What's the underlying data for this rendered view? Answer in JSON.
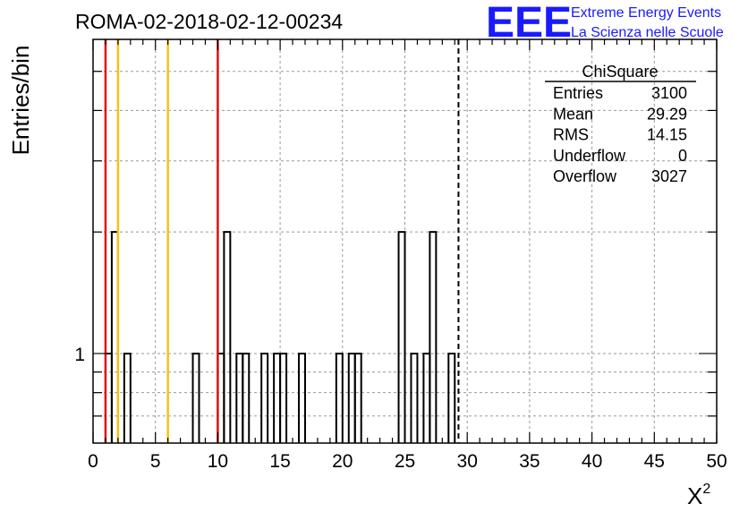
{
  "chart_data": {
    "type": "histogram",
    "title": "ROMA-02-2018-02-12-00234",
    "xlabel": "X",
    "xlabel_sup": "2",
    "ylabel": "Entries/bin",
    "xlim": [
      0,
      50
    ],
    "ylog": true,
    "ylim": [
      0.6,
      6
    ],
    "bin_width": 0.5,
    "x_ticks": [
      "0",
      "5",
      "10",
      "15",
      "20",
      "25",
      "30",
      "35",
      "40",
      "45",
      "50"
    ],
    "y_ticks": [
      "1"
    ],
    "grid": true,
    "counts": [
      0,
      0,
      1,
      2,
      0,
      1,
      0,
      0,
      0,
      0,
      0,
      0,
      0,
      0,
      0,
      0,
      1,
      0,
      0,
      0,
      1,
      2,
      0,
      1,
      1,
      0,
      0,
      1,
      0,
      1,
      1,
      0,
      0,
      1,
      0,
      0,
      0,
      0,
      0,
      1,
      0,
      1,
      1,
      0,
      0,
      0,
      0,
      0,
      0,
      2,
      0,
      1,
      0,
      1,
      2,
      0,
      0,
      1,
      0,
      0,
      0,
      0,
      0,
      0,
      0,
      0,
      0,
      0,
      0,
      0,
      0,
      0,
      0,
      0,
      0,
      0,
      0,
      0,
      0,
      0,
      0,
      0,
      0,
      0,
      0,
      0,
      0,
      0,
      0,
      0,
      0,
      0,
      0,
      0,
      0,
      0,
      0,
      0,
      0,
      0
    ],
    "vlines": [
      {
        "x": 1.0,
        "color": "#e01010"
      },
      {
        "x": 2.0,
        "color": "#f2c21a"
      },
      {
        "x": 6.0,
        "color": "#f2c21a"
      },
      {
        "x": 10.0,
        "color": "#e01010"
      }
    ],
    "dashed_line_x": 29.3,
    "stats": {
      "name": "ChiSquare",
      "rows": [
        {
          "label": "Entries",
          "value": "3100"
        },
        {
          "label": "Mean",
          "value": "29.29"
        },
        {
          "label": "RMS",
          "value": "14.15"
        },
        {
          "label": "Underflow",
          "value": "0"
        },
        {
          "label": "Overflow",
          "value": "3027"
        }
      ]
    }
  },
  "logo": {
    "mark": "EEE",
    "line1": "Extreme Energy Events",
    "line2": "La Scienza nelle Scuole",
    "color": "#1a1aff"
  }
}
